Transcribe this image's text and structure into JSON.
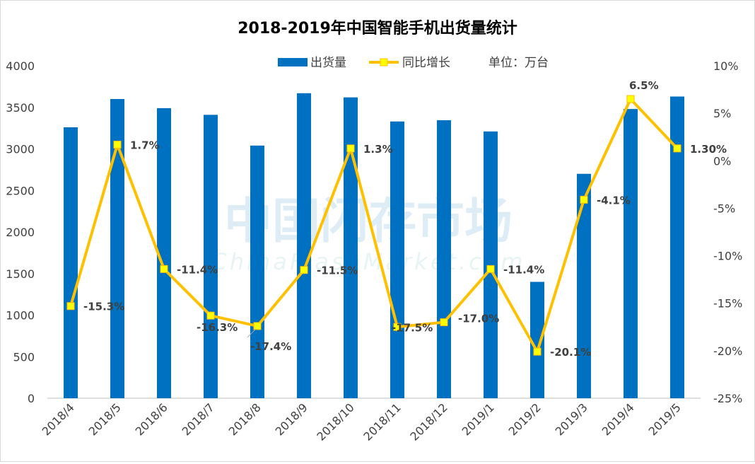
{
  "chart_data": {
    "type": "bar+line",
    "title": "2018-2019年中国智能手机出货量统计",
    "unit_label": "单位：万台",
    "categories": [
      "2018/4",
      "2018/5",
      "2018/6",
      "2018/7",
      "2018/8",
      "2018/9",
      "2018/10",
      "2018/11",
      "2018/12",
      "2019/1",
      "2019/2",
      "2019/3",
      "2019/4",
      "2019/5"
    ],
    "series": [
      {
        "name": "出货量",
        "type": "bar",
        "axis": "left",
        "color": "#0070c0",
        "values": [
          3260,
          3600,
          3490,
          3410,
          3040,
          3670,
          3620,
          3330,
          3345,
          3210,
          1400,
          2700,
          3480,
          3630
        ]
      },
      {
        "name": "同比增长",
        "type": "line",
        "axis": "right",
        "color": "#ffc000",
        "marker_color": "#ffff00",
        "values": [
          -15.3,
          1.7,
          -11.4,
          -16.3,
          -17.4,
          -11.5,
          1.3,
          -17.5,
          -17.0,
          -11.4,
          -20.1,
          -4.1,
          6.5,
          1.3
        ],
        "data_labels": [
          "-15.3%",
          "1.7%",
          "-11.4%",
          "-16.3%",
          "-17.4%",
          "-11.5%",
          "1.3%",
          "-17.5%",
          "-17.0%",
          "-11.4%",
          "-20.1%",
          "-4.1%",
          "6.5%",
          "1.30%"
        ]
      }
    ],
    "left_axis": {
      "ylim": [
        0,
        4000
      ],
      "ticks": [
        "0",
        "500",
        "1000",
        "1500",
        "2000",
        "2500",
        "3000",
        "3500",
        "4000"
      ]
    },
    "right_axis": {
      "ylim": [
        -25,
        10
      ],
      "ticks": [
        "-25%",
        "-20%",
        "-15%",
        "-10%",
        "-5%",
        "0%",
        "5%",
        "10%"
      ]
    },
    "grid": false,
    "legend_position": "top"
  },
  "watermark": {
    "text_cn": "中国闪存市场",
    "text_en": "ChinaFlashMarket.com"
  }
}
